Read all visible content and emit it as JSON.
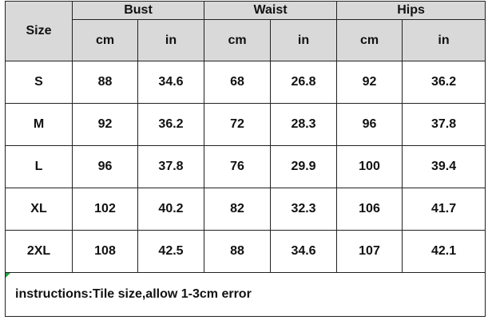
{
  "table": {
    "header": {
      "size": "Size",
      "groups": [
        "Bust",
        "Waist",
        "Hips"
      ],
      "units": [
        "cm",
        "in",
        "cm",
        "in",
        "cm",
        "in"
      ]
    },
    "rows": [
      [
        "S",
        88,
        34.6,
        68,
        26.8,
        92,
        36.2
      ],
      [
        "M",
        92,
        36.2,
        72,
        28.3,
        96,
        37.8
      ],
      [
        "L",
        96,
        37.8,
        76,
        29.9,
        100,
        39.4
      ],
      [
        "XL",
        102,
        40.2,
        82,
        32.3,
        106,
        41.7
      ],
      [
        "2XL",
        108,
        42.5,
        88,
        34.6,
        107,
        42.1
      ]
    ],
    "note": "instructions:Tile size,allow 1-3cm error"
  }
}
